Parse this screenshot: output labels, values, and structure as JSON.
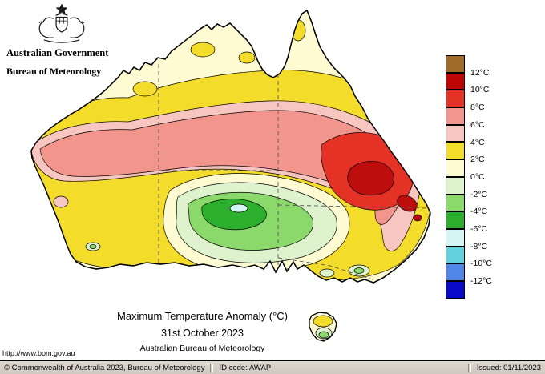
{
  "header": {
    "government_title": "Australian Government",
    "bureau_title": "Bureau of Meteorology"
  },
  "map": {
    "title": "Maximum Temperature Anomaly (°C)",
    "date": "31st October 2023",
    "attribution": "Australian Bureau of Meteorology",
    "url": "http://www.bom.gov.au",
    "colors": {
      "cream": "#FEFBD3",
      "yellow": "#F3DD2A",
      "light_pink": "#F8C6C0",
      "salmon": "#F2958D",
      "red": "#E53226",
      "dark_red": "#BE0D0D",
      "pale_green": "#DFF2CE",
      "green": "#8BD96B",
      "dark_green": "#2CAF2C",
      "pale_cyan": "#D4F4F6"
    }
  },
  "legend": {
    "labels": [
      "12°C",
      "10°C",
      "8°C",
      "6°C",
      "4°C",
      "2°C",
      "0°C",
      "-2°C",
      "-4°C",
      "-6°C",
      "-8°C",
      "-10°C",
      "-12°C"
    ],
    "colors": [
      "#A06B28",
      "#C00505",
      "#E53226",
      "#F2958D",
      "#F8C6C0",
      "#F3DD2A",
      "#FEFBD3",
      "#DFF2CE",
      "#8BD96B",
      "#2CAF2C",
      "#D4F4F6",
      "#63D2DC",
      "#4F86E8",
      "#0A0ACC"
    ]
  },
  "statusbar": {
    "copyright": "© Commonwealth of Australia 2023, Bureau of Meteorology",
    "id_code": "ID code: AWAP",
    "issued": "Issued: 01/11/2023"
  }
}
